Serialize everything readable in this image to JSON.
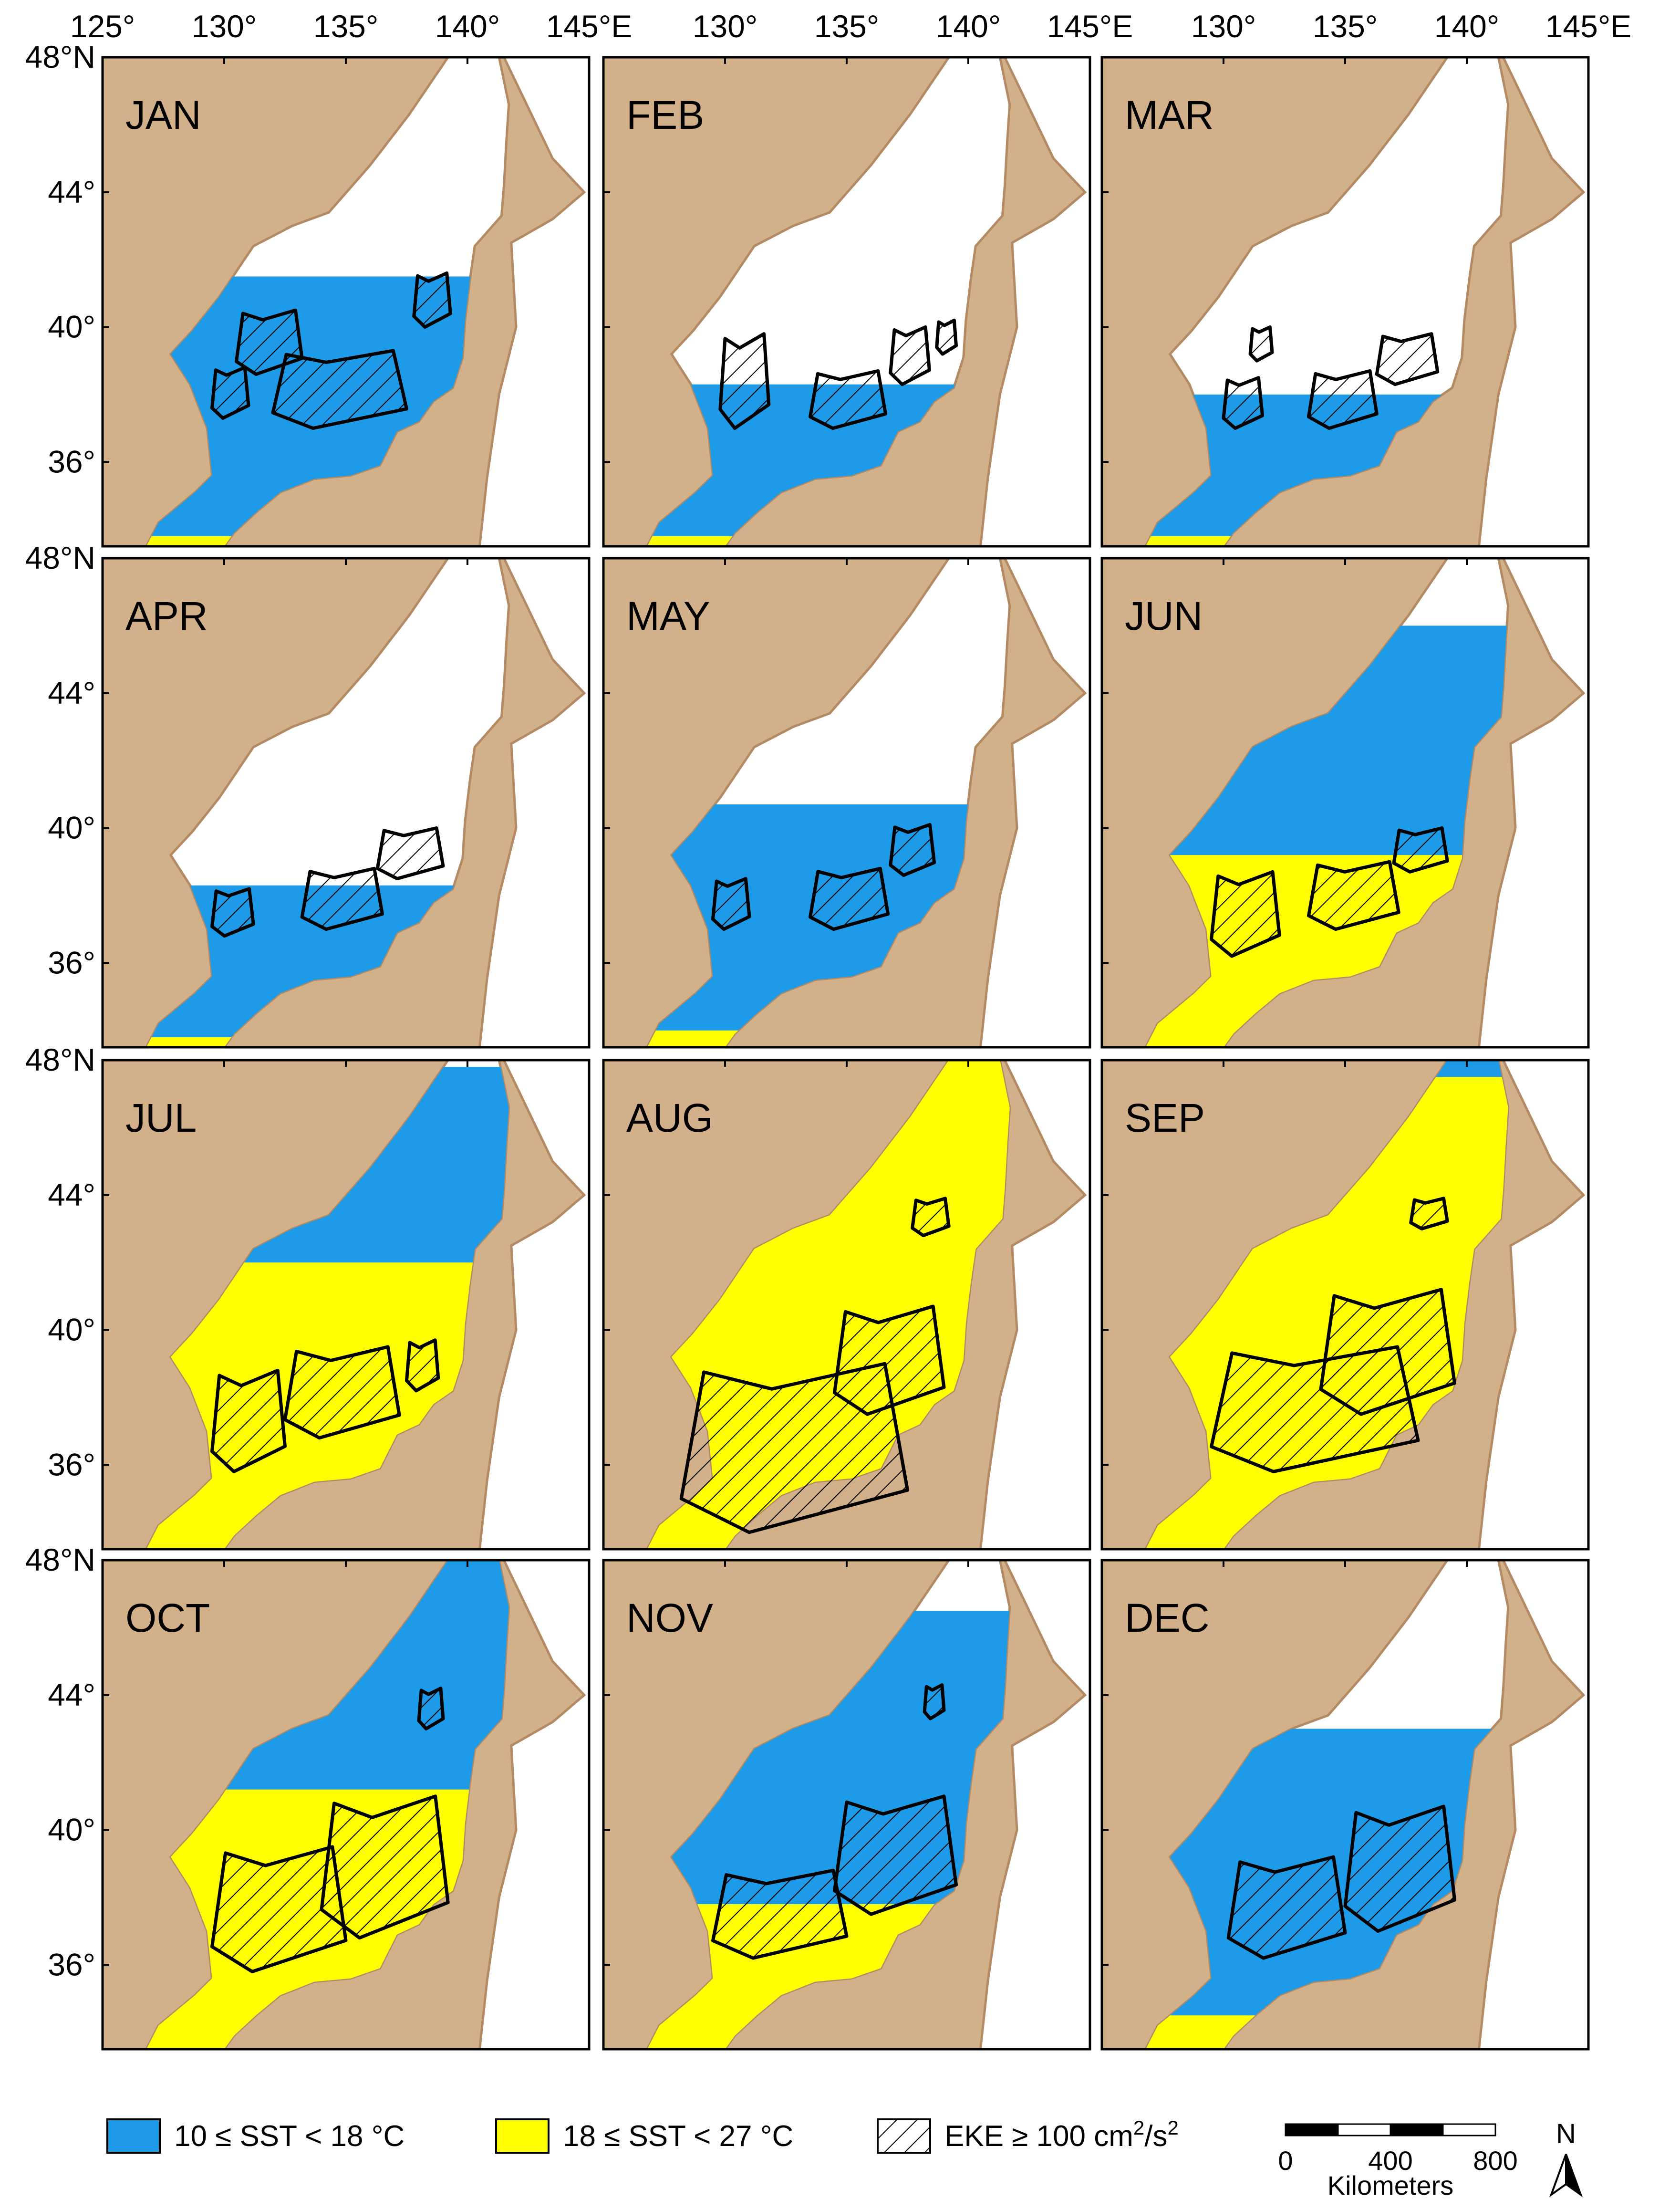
{
  "map": {
    "months": [
      "JAN",
      "FEB",
      "MAR",
      "APR",
      "MAY",
      "JUN",
      "JUL",
      "AUG",
      "SEP",
      "OCT",
      "NOV",
      "DEC"
    ],
    "lon_range": [
      125,
      145
    ],
    "lat_range": [
      33.5,
      48
    ],
    "lon_ticks": [
      125,
      130,
      135,
      140,
      145
    ],
    "lon_tick_labels": [
      "125°",
      "130°",
      "135°",
      "140°",
      "145°E"
    ],
    "lat_ticks": [
      36,
      40,
      44,
      48
    ],
    "lat_tick_labels": [
      "36°",
      "40°",
      "44°",
      "48°N"
    ],
    "panels": [
      {
        "month": "JAN",
        "sst_cool_north_lat": 41.5,
        "sst_warm_north_lat": 33.8,
        "eke_regions": [
          {
            "lon": [
              129.5,
              131.0
            ],
            "lat": [
              37.3,
              38.8
            ]
          },
          {
            "lon": [
              132.0,
              137.5
            ],
            "lat": [
              37.0,
              39.3
            ]
          },
          {
            "lon": [
              130.5,
              133.2
            ],
            "lat": [
              38.6,
              40.5
            ]
          },
          {
            "lon": [
              137.8,
              139.3
            ],
            "lat": [
              40.0,
              41.6
            ]
          }
        ]
      },
      {
        "month": "FEB",
        "sst_cool_north_lat": 38.3,
        "sst_warm_north_lat": 33.8,
        "eke_regions": [
          {
            "lon": [
              129.8,
              131.8
            ],
            "lat": [
              37.0,
              39.8
            ]
          },
          {
            "lon": [
              133.5,
              136.6
            ],
            "lat": [
              37.0,
              38.7
            ]
          },
          {
            "lon": [
              136.8,
              138.4
            ],
            "lat": [
              38.3,
              40.0
            ]
          },
          {
            "lon": [
              138.7,
              139.5
            ],
            "lat": [
              39.2,
              40.2
            ]
          }
        ]
      },
      {
        "month": "MAR",
        "sst_cool_north_lat": 38.0,
        "sst_warm_north_lat": 33.8,
        "eke_regions": [
          {
            "lon": [
              130.0,
              131.6
            ],
            "lat": [
              37.0,
              38.5
            ]
          },
          {
            "lon": [
              133.5,
              136.3
            ],
            "lat": [
              37.0,
              38.7
            ]
          },
          {
            "lon": [
              136.3,
              138.8
            ],
            "lat": [
              38.3,
              39.8
            ]
          },
          {
            "lon": [
              131.1,
              132.0
            ],
            "lat": [
              39.0,
              40.0
            ]
          }
        ]
      },
      {
        "month": "APR",
        "sst_cool_north_lat": 38.3,
        "sst_warm_north_lat": 33.8,
        "eke_regions": [
          {
            "lon": [
              129.5,
              131.2
            ],
            "lat": [
              36.8,
              38.2
            ]
          },
          {
            "lon": [
              133.2,
              136.5
            ],
            "lat": [
              37.0,
              38.8
            ]
          },
          {
            "lon": [
              136.3,
              139.0
            ],
            "lat": [
              38.5,
              40.0
            ]
          }
        ]
      },
      {
        "month": "MAY",
        "sst_cool_north_lat": 40.7,
        "sst_warm_north_lat": 34.0,
        "eke_regions": [
          {
            "lon": [
              129.5,
              131.0
            ],
            "lat": [
              37.0,
              38.5
            ]
          },
          {
            "lon": [
              133.5,
              136.7
            ],
            "lat": [
              37.0,
              38.8
            ]
          },
          {
            "lon": [
              136.8,
              138.6
            ],
            "lat": [
              38.6,
              40.1
            ]
          }
        ]
      },
      {
        "month": "JUN",
        "sst_cool_north_lat": 46.0,
        "sst_warm_north_lat": 39.2,
        "eke_regions": [
          {
            "lon": [
              129.5,
              132.3
            ],
            "lat": [
              36.2,
              38.7
            ]
          },
          {
            "lon": [
              133.5,
              137.2
            ],
            "lat": [
              37.0,
              39.0
            ]
          },
          {
            "lon": [
              137.0,
              139.2
            ],
            "lat": [
              38.7,
              40.0
            ]
          }
        ]
      },
      {
        "month": "JUL",
        "sst_cool_north_lat": 47.8,
        "sst_warm_north_lat": 42.0,
        "eke_regions": [
          {
            "lon": [
              129.5,
              132.5
            ],
            "lat": [
              35.8,
              38.8
            ]
          },
          {
            "lon": [
              132.5,
              137.2
            ],
            "lat": [
              36.8,
              39.5
            ]
          },
          {
            "lon": [
              137.5,
              138.8
            ],
            "lat": [
              38.2,
              39.7
            ]
          }
        ]
      },
      {
        "month": "AUG",
        "sst_cool_north_lat": null,
        "sst_warm_north_lat": 48.0,
        "eke_regions": [
          {
            "lon": [
              128.2,
              137.5
            ],
            "lat": [
              34.0,
              39.0
            ]
          },
          {
            "lon": [
              134.5,
              139.0
            ],
            "lat": [
              37.5,
              40.7
            ]
          },
          {
            "lon": [
              137.7,
              139.2
            ],
            "lat": [
              42.8,
              43.9
            ]
          }
        ]
      },
      {
        "month": "SEP",
        "sst_cool_north_lat": 48.0,
        "sst_warm_north_lat": 47.5,
        "eke_regions": [
          {
            "lon": [
              129.5,
              138.0
            ],
            "lat": [
              35.8,
              39.5
            ]
          },
          {
            "lon": [
              134.0,
              139.5
            ],
            "lat": [
              37.5,
              41.2
            ]
          },
          {
            "lon": [
              137.7,
              139.2
            ],
            "lat": [
              43.0,
              43.9
            ]
          }
        ]
      },
      {
        "month": "OCT",
        "sst_cool_north_lat": 48.0,
        "sst_warm_north_lat": 41.2,
        "eke_regions": [
          {
            "lon": [
              129.5,
              135.0
            ],
            "lat": [
              35.8,
              39.5
            ]
          },
          {
            "lon": [
              134.0,
              139.2
            ],
            "lat": [
              36.8,
              41.0
            ]
          },
          {
            "lon": [
              138.0,
              139.0
            ],
            "lat": [
              43.0,
              44.2
            ]
          }
        ]
      },
      {
        "month": "NOV",
        "sst_cool_north_lat": 46.5,
        "sst_warm_north_lat": 37.8,
        "eke_regions": [
          {
            "lon": [
              129.5,
              135.0
            ],
            "lat": [
              36.2,
              38.8
            ]
          },
          {
            "lon": [
              134.5,
              139.5
            ],
            "lat": [
              37.5,
              41.0
            ]
          },
          {
            "lon": [
              138.2,
              139.0
            ],
            "lat": [
              43.3,
              44.3
            ]
          }
        ]
      },
      {
        "month": "DEC",
        "sst_cool_north_lat": 43.0,
        "sst_warm_north_lat": 34.5,
        "eke_regions": [
          {
            "lon": [
              130.2,
              135.0
            ],
            "lat": [
              36.2,
              39.2
            ]
          },
          {
            "lon": [
              135.0,
              139.5
            ],
            "lat": [
              37.0,
              40.7
            ]
          }
        ]
      }
    ]
  },
  "legend": {
    "cool_label": "10 ≤ SST < 18 °C",
    "warm_label": "18 ≤ SST < 27 °C",
    "eke_label_base": "EKE  ≥ 100 cm",
    "eke_sup1": "2",
    "eke_mid": "/s",
    "eke_sup2": "2",
    "scale_ticks": [
      "0",
      "400",
      "800"
    ],
    "scale_unit": "Kilometers",
    "north_label": "N"
  },
  "colors": {
    "land": "#d2b08a",
    "coast": "#b38a63",
    "sea": "#ffffff",
    "sst_cool": "#1e9be8",
    "sst_warm": "#ffff00",
    "eke_outline": "#000000"
  }
}
